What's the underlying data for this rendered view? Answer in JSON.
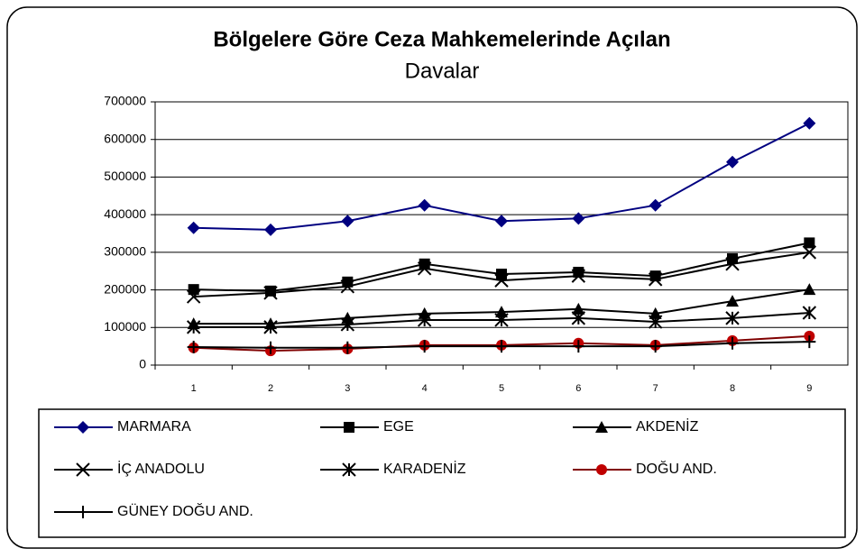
{
  "chart_data": {
    "type": "line",
    "title": "Bölgelere Göre Ceza Mahkemelerinde Açılan",
    "subtitle": "Davalar",
    "categories": [
      "1",
      "2",
      "3",
      "4",
      "5",
      "6",
      "7",
      "8",
      "9"
    ],
    "ylim": [
      0,
      700000
    ],
    "yticks": [
      0,
      100000,
      200000,
      300000,
      400000,
      500000,
      600000,
      700000
    ],
    "grid": true,
    "legend": "bottom",
    "series": [
      {
        "name": "MARMARA",
        "color": "#000080",
        "marker": "diamond",
        "values": [
          365000,
          360000,
          383000,
          425000,
          383000,
          390000,
          425000,
          540000,
          643000
        ]
      },
      {
        "name": "EGE",
        "color": "#000000",
        "marker": "square",
        "values": [
          201000,
          197000,
          221000,
          269000,
          242000,
          247000,
          237000,
          283000,
          325000
        ]
      },
      {
        "name": "AKDENİZ",
        "color": "#000000",
        "marker": "triangle",
        "values": [
          110000,
          110000,
          125000,
          137000,
          141000,
          149000,
          137000,
          170000,
          201000
        ]
      },
      {
        "name": "İÇ ANADOLU",
        "color": "#000000",
        "marker": "x",
        "values": [
          182000,
          192000,
          209000,
          257000,
          225000,
          237000,
          228000,
          269000,
          300000
        ]
      },
      {
        "name": "KARADENİZ",
        "color": "#000000",
        "marker": "asterisk",
        "values": [
          101000,
          101000,
          108000,
          120000,
          120000,
          125000,
          115000,
          125000,
          139000
        ]
      },
      {
        "name": "DOĞU AND.",
        "color": "#800000",
        "marker": "circle",
        "values": [
          46000,
          38000,
          43000,
          53000,
          53000,
          58000,
          53000,
          65000,
          77000
        ]
      },
      {
        "name": "GÜNEY DOĞU AND.",
        "color": "#000000",
        "marker": "plus",
        "values": [
          48000,
          46000,
          46000,
          50000,
          50000,
          50000,
          50000,
          58000,
          62000
        ]
      }
    ]
  }
}
